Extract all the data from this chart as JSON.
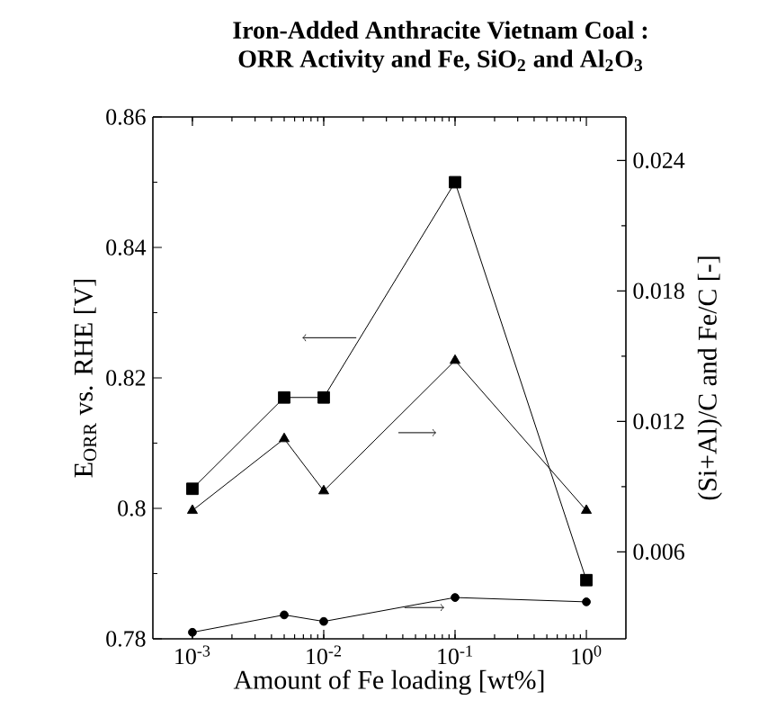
{
  "chart_data": {
    "type": "line",
    "title": "Iron-Added Anthracite Vietnam Coal :",
    "subtitle": "ORR Activity and Fe, SiO$_{2}$ and Al$_{2}$O$_{3}$",
    "xlabel": "Amount of Fe loading [wt%]",
    "ylabel": "E$_{ORR}$ vs. RHE [V]",
    "y2label": "(Si+Al)/C and Fe/C  [-]",
    "log": "x",
    "x": [
      0.001,
      0.005,
      0.01,
      0.1,
      1
    ],
    "xlim": [
      0.0005,
      2
    ],
    "xticks": [
      {
        "value": 0.001,
        "label": "10$^{-3}$"
      },
      {
        "value": 0.01,
        "label": "10$^{-2}$"
      },
      {
        "value": 0.1,
        "label": "10$^{-1}$"
      },
      {
        "value": 1,
        "label": "10$^{0}$"
      }
    ],
    "ylim": [
      0.78,
      0.86
    ],
    "yticks": [
      0.78,
      0.8,
      0.82,
      0.84,
      0.86
    ],
    "y2lim": [
      0.002,
      0.026
    ],
    "y2ticks": [
      0.006,
      0.012,
      0.018,
      0.024
    ],
    "series": [
      {
        "color": "#000000",
        "marker": "square",
        "values": [
          0.803,
          0.817,
          0.817,
          0.85,
          0.789
        ]
      },
      {
        "color": "#000000",
        "marker": "triangle",
        "axis": "y2",
        "values": [
          0.0079,
          0.0112,
          0.0088,
          0.0148,
          0.0079
        ]
      },
      {
        "color": "#000000",
        "marker": "circle",
        "axis": "y2",
        "values": [
          0.0023,
          0.0031,
          0.0028,
          0.0039,
          0.0037
        ]
      }
    ]
  }
}
